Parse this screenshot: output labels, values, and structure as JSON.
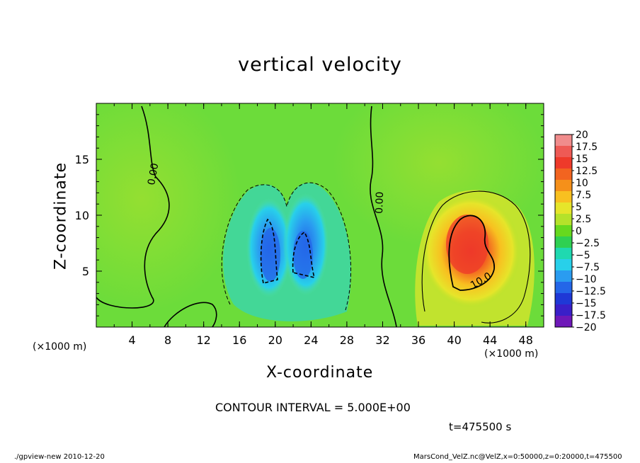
{
  "chart_data": {
    "type": "heatmap",
    "title": "vertical velocity",
    "xlabel": "X-coordinate",
    "ylabel": "Z-coordinate",
    "x_unit": "(×1000 m)",
    "z_unit": "(×1000 m)",
    "xlim": [
      0,
      50
    ],
    "ylim": [
      0,
      20
    ],
    "x_ticks": [
      "4",
      "8",
      "12",
      "16",
      "20",
      "24",
      "28",
      "32",
      "36",
      "40",
      "44",
      "48"
    ],
    "y_ticks": [
      "5",
      "10",
      "15"
    ],
    "contour_labels": [
      "0.00",
      "0.00",
      "10.0"
    ],
    "colorbar": {
      "labels": [
        "20",
        "17.5",
        "15",
        "12.5",
        "10",
        "7.5",
        "5",
        "2.5",
        "0",
        "−2.5",
        "−5",
        "−7.5",
        "−10",
        "−12.5",
        "−15",
        "−17.5",
        "−20"
      ],
      "colors": [
        "#f08c8c",
        "#ee5a55",
        "#ee3a2a",
        "#f26420",
        "#f5901a",
        "#f8c020",
        "#e6e52a",
        "#b5e22a",
        "#66d91e",
        "#2fd052",
        "#1fd9b0",
        "#28d0ea",
        "#2a9cf0",
        "#2466e8",
        "#1f38d6",
        "#3a1fc8",
        "#6e18b8"
      ]
    },
    "features": [
      {
        "kind": "downdraft",
        "x_range": [
          15,
          29
        ],
        "z_range": [
          2,
          13
        ],
        "min_value": -12.5
      },
      {
        "kind": "updraft",
        "x_range": [
          36,
          49
        ],
        "z_range": [
          1,
          12
        ],
        "max_value": 13
      }
    ]
  },
  "contour_interval": "CONTOUR INTERVAL = 5.000E+00",
  "time_label": "t=475500  s",
  "footer_left": "./gpview-new   2010-12-20",
  "footer_right": "MarsCond_VelZ.nc@VelZ,x=0:50000,z=0:20000,t=475500"
}
